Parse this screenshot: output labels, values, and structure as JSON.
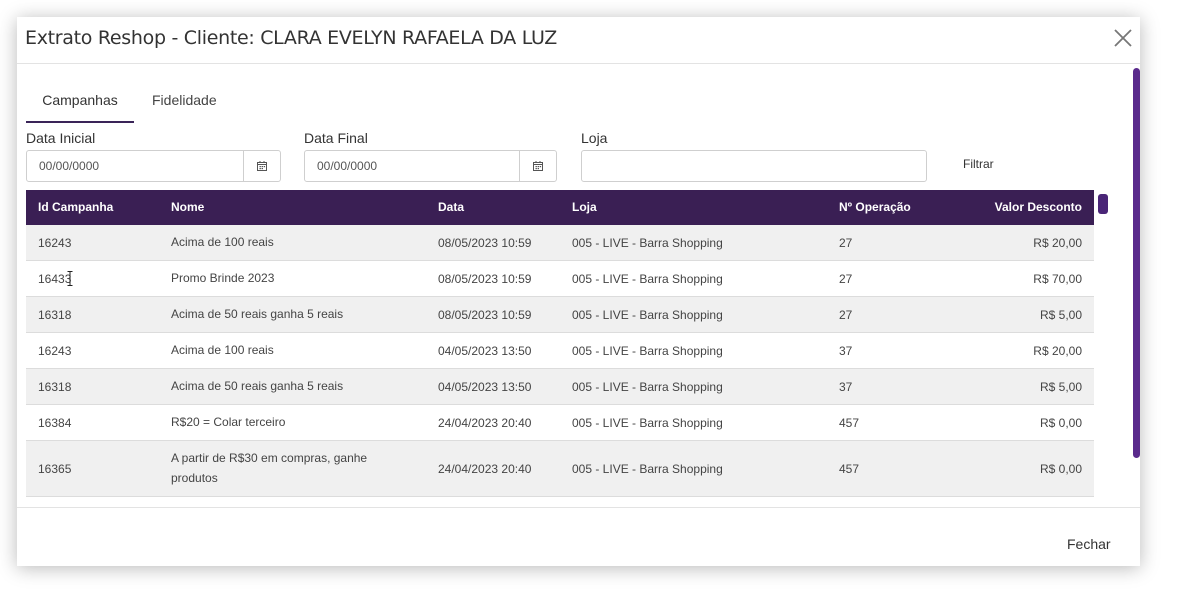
{
  "dialog": {
    "title": "Extrato Reshop - Cliente: CLARA EVELYN RAFAELA DA LUZ",
    "close_icon": "close-icon"
  },
  "tabs": [
    {
      "label": "Campanhas",
      "active": true
    },
    {
      "label": "Fidelidade",
      "active": false
    }
  ],
  "filters": {
    "data_inicial": {
      "label": "Data Inicial",
      "value": "00/00/0000"
    },
    "data_final": {
      "label": "Data Final",
      "value": "00/00/0000"
    },
    "loja": {
      "label": "Loja",
      "value": ""
    },
    "filtrar_label": "Filtrar"
  },
  "table": {
    "columns": [
      "Id Campanha",
      "Nome",
      "Data",
      "Loja",
      "Nº Operação",
      "Valor Desconto"
    ],
    "rows": [
      {
        "id": "16243",
        "nome": "Acima de 100 reais",
        "data": "08/05/2023 10:59",
        "loja": "005 - LIVE - Barra Shopping",
        "op": "27",
        "valor": "R$ 20,00"
      },
      {
        "id": "16433",
        "nome": "Promo Brinde 2023",
        "data": "08/05/2023 10:59",
        "loja": "005 - LIVE - Barra Shopping",
        "op": "27",
        "valor": "R$ 70,00"
      },
      {
        "id": "16318",
        "nome": "Acima de 50 reais ganha 5 reais",
        "data": "08/05/2023 10:59",
        "loja": "005 - LIVE - Barra Shopping",
        "op": "27",
        "valor": "R$ 5,00"
      },
      {
        "id": "16243",
        "nome": "Acima de 100 reais",
        "data": "04/05/2023 13:50",
        "loja": "005 - LIVE - Barra Shopping",
        "op": "37",
        "valor": "R$ 20,00"
      },
      {
        "id": "16318",
        "nome": "Acima de 50 reais ganha 5 reais",
        "data": "04/05/2023 13:50",
        "loja": "005 - LIVE - Barra Shopping",
        "op": "37",
        "valor": "R$ 5,00"
      },
      {
        "id": "16384",
        "nome": "R$20 = Colar terceiro",
        "data": "24/04/2023 20:40",
        "loja": "005 - LIVE - Barra Shopping",
        "op": "457",
        "valor": "R$ 0,00"
      },
      {
        "id": "16365",
        "nome": "A partir de R$30 em compras, ganhe produtos",
        "data": "24/04/2023 20:40",
        "loja": "005 - LIVE - Barra Shopping",
        "op": "457",
        "valor": "R$ 0,00"
      }
    ]
  },
  "footer": {
    "fechar_label": "Fechar"
  },
  "colors": {
    "header_bg": "#3a1f54",
    "accent": "#5a2a8c"
  }
}
